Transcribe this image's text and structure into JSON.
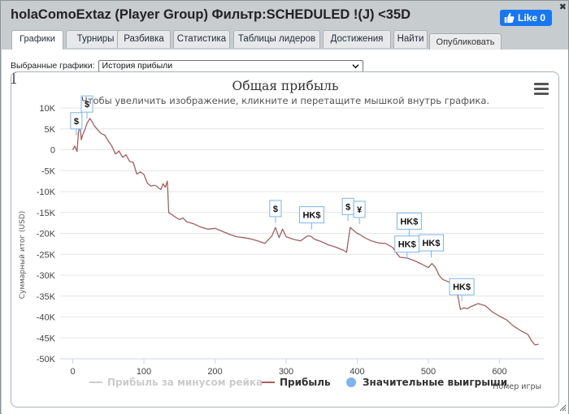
{
  "window": {
    "title": "holaComoExtaz (Player Group) Фильтр:SCHEDULED !(J) <35D",
    "close_glyph": "✖",
    "like_label": "Like 0"
  },
  "tabs": [
    {
      "label": "Графики",
      "active": true
    },
    {
      "label": "Турниры",
      "active": false
    },
    {
      "label": "Разбивка",
      "active": false
    },
    {
      "label": "Статистика",
      "active": false
    },
    {
      "label": "Таблицы лидеров",
      "active": false
    },
    {
      "label": "Достижения",
      "active": false
    },
    {
      "label": "Найти",
      "active": false
    }
  ],
  "publish_label": "Опубликовать",
  "selector": {
    "label": "Выбранные графики:",
    "value": "История прибыли"
  },
  "chart_data": {
    "type": "line",
    "title": "Общая прибыль",
    "subtitle": "Чтобы увеличить изображение, кликните и перетащите мышкой внутрь графика.",
    "xlabel": "Номер игры",
    "ylabel": "Суммарный итог (USD)",
    "xlim": [
      -5,
      660
    ],
    "ylim": [
      -50000,
      10000
    ],
    "x_ticks": [
      0,
      100,
      200,
      300,
      400,
      500,
      600
    ],
    "y_ticks": [
      10000,
      5000,
      0,
      -5000,
      -10000,
      -15000,
      -20000,
      -25000,
      -30000,
      -35000,
      -40000,
      -45000,
      -50000
    ],
    "y_tick_labels": [
      "10K",
      "5K",
      "0",
      "-5K",
      "-10K",
      "-15K",
      "-20K",
      "-25K",
      "-30K",
      "-35K",
      "-40K",
      "-45K",
      "-50K"
    ],
    "grid": true,
    "legend_position": "bottom",
    "series": [
      {
        "name": "Прибыль за минусом рейка",
        "color": "#cccccc",
        "visible": false,
        "x": [],
        "y": []
      },
      {
        "name": "Прибыль",
        "color": "#a0605f",
        "x": [
          0,
          3,
          6,
          8,
          10,
          12,
          14,
          17,
          20,
          24,
          27,
          30,
          35,
          40,
          45,
          50,
          55,
          60,
          65,
          70,
          75,
          80,
          85,
          90,
          95,
          100,
          105,
          110,
          115,
          118,
          121,
          124,
          127,
          130,
          133,
          135,
          140,
          145,
          150,
          155,
          160,
          170,
          180,
          190,
          200,
          210,
          220,
          230,
          240,
          250,
          260,
          270,
          280,
          285,
          290,
          295,
          300,
          310,
          320,
          330,
          335,
          340,
          350,
          360,
          370,
          380,
          385,
          390,
          395,
          400,
          405,
          410,
          420,
          430,
          440,
          450,
          455,
          460,
          470,
          480,
          490,
          500,
          505,
          510,
          515,
          520,
          530,
          540,
          545,
          550,
          555,
          560,
          570,
          580,
          590,
          600,
          610,
          620,
          630,
          640,
          645,
          650,
          655
        ],
        "y": [
          0,
          900,
          -400,
          4200,
          6000,
          2400,
          3600,
          4800,
          6300,
          7500,
          6800,
          5800,
          4800,
          3900,
          3500,
          2100,
          900,
          -1000,
          -300,
          -1800,
          -1200,
          -2800,
          -3000,
          -5800,
          -5300,
          -5900,
          -8000,
          -8700,
          -8500,
          -8700,
          -9200,
          -9500,
          -8100,
          -9000,
          -7500,
          -15000,
          -15600,
          -16200,
          -16700,
          -16300,
          -17200,
          -17700,
          -18500,
          -19000,
          -18800,
          -19500,
          -20200,
          -20800,
          -21000,
          -21300,
          -21800,
          -22400,
          -20600,
          -18600,
          -21000,
          -19000,
          -20800,
          -21400,
          -21800,
          -20600,
          -20700,
          -21400,
          -22000,
          -22800,
          -23300,
          -24000,
          -24500,
          -18600,
          -19300,
          -20000,
          -20400,
          -21000,
          -21800,
          -22300,
          -22400,
          -23400,
          -24700,
          -25700,
          -25900,
          -26500,
          -27300,
          -28200,
          -27200,
          -28200,
          -30000,
          -31000,
          -31700,
          -33600,
          -38200,
          -37800,
          -38000,
          -37500,
          -36800,
          -37300,
          -38800,
          -39800,
          -40700,
          -42200,
          -43300,
          -44200,
          -45700,
          -46700,
          -46500
        ]
      },
      {
        "name": "Значительные выигрыши",
        "color": "#7cb5ec",
        "markers": [
          {
            "label": "$",
            "x": 5,
            "y": 5000
          },
          {
            "label": "$",
            "x": 20,
            "y": 9000
          },
          {
            "label": "$",
            "x": 285,
            "y": -16000
          },
          {
            "label": "HK$",
            "x": 336,
            "y": -17500
          },
          {
            "label": "$",
            "x": 387,
            "y": -15500
          },
          {
            "label": "¥",
            "x": 403,
            "y": -16200
          },
          {
            "label": "HK$",
            "x": 473,
            "y": -19000
          },
          {
            "label": "HK$",
            "x": 470,
            "y": -24500
          },
          {
            "label": "HK$",
            "x": 504,
            "y": -24200
          },
          {
            "label": "HK$",
            "x": 547,
            "y": -34700
          }
        ]
      }
    ]
  }
}
